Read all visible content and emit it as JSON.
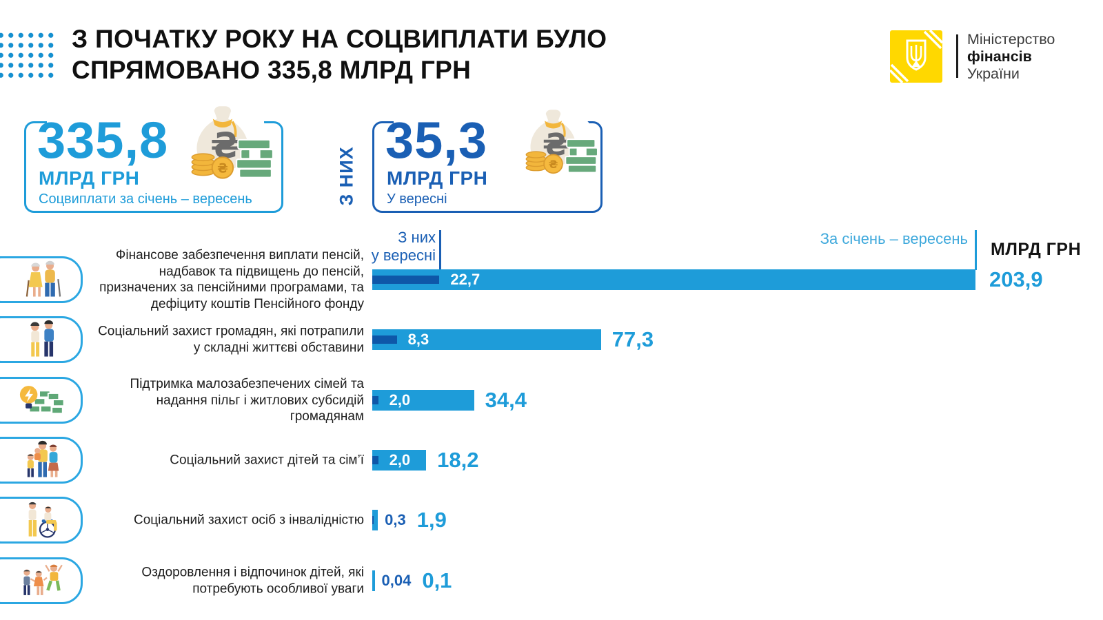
{
  "header": {
    "title_line1": "З ПОЧАТКУ РОКУ НА СОЦВИПЛАТИ БУЛО",
    "title_line2": "СПРЯМОВАНО 335,8 МЛРД ГРН",
    "ministry": {
      "line1": "Міністерство",
      "line2": "фінансів",
      "line3": "України"
    }
  },
  "stat_period": {
    "value": "335,8",
    "unit": "МЛРД ГРН",
    "caption": "Соцвиплати за січень – вересень"
  },
  "connector_label": "З НИХ",
  "stat_month": {
    "value": "35,3",
    "unit": "МЛРД ГРН",
    "caption": "У вересні"
  },
  "chart_annotations": {
    "month_line1": "З них",
    "month_line2": "у вересні",
    "period": "За січень – вересень",
    "unit_header": "МЛРД ГРН"
  },
  "colors": {
    "light_blue": "#1E9CD9",
    "dark_blue": "#1A5FB4",
    "bar_dark": "#0E57A8",
    "accent_yellow": "#FFD800",
    "dots_blue": "#1590D0"
  },
  "chart_data": {
    "type": "bar",
    "orientation": "horizontal",
    "unit": "млрд грн",
    "xlim": [
      0,
      210
    ],
    "legend_position": "annotations-above-first-bar",
    "categories": [
      "Фінансове забезпечення виплати пенсій, надбавок та підвищень до пенсій, призначених за пенсійними програмами, та дефіциту коштів Пенсійного фонду",
      "Соціальний захист громадян, які потрапили у складні життєві обставини",
      "Підтримка малозабезпечених сімей та надання пільг і житлових субсидій громадянам",
      "Соціальний захист дітей та сім’ї",
      "Соціальний захист осіб з інвалідністю",
      "Оздоровлення і відпочинок дітей, які потребують особливої уваги"
    ],
    "icons": [
      "elderly-couple",
      "adults",
      "bulb-money",
      "family",
      "wheelchair",
      "children"
    ],
    "series": [
      {
        "name": "У вересні",
        "values": [
          22.7,
          8.3,
          2.0,
          2.0,
          0.3,
          0.04
        ],
        "labels": [
          "22,7",
          "8,3",
          "2,0",
          "2,0",
          "0,3",
          "0,04"
        ]
      },
      {
        "name": "За січень – вересень",
        "values": [
          203.9,
          77.3,
          34.4,
          18.2,
          1.9,
          0.1
        ],
        "labels": [
          "203,9",
          "77,3",
          "34,4",
          "18,2",
          "1,9",
          "0,1"
        ]
      }
    ]
  }
}
